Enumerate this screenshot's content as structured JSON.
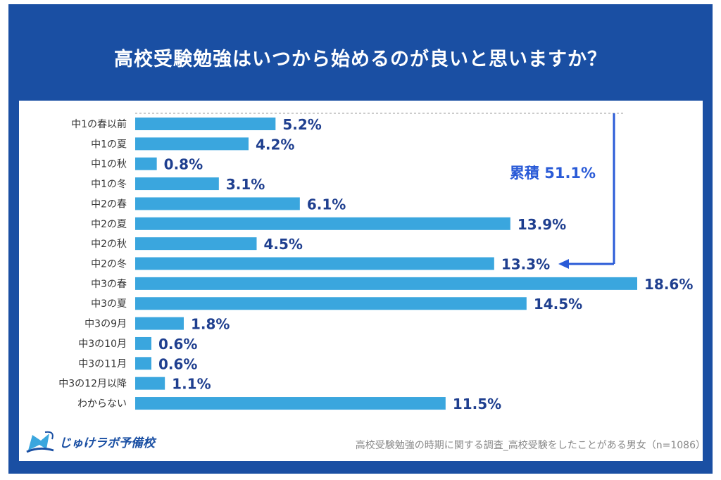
{
  "chart_data": {
    "type": "bar",
    "orientation": "horizontal",
    "title": "高校受験勉強はいつから始めるのが良いと思いますか？",
    "categories": [
      "中1の春以前",
      "中1の夏",
      "中1の秋",
      "中1の冬",
      "中2の春",
      "中2の夏",
      "中2の秋",
      "中2の冬",
      "中3の春",
      "中3の夏",
      "中3の9月",
      "中3の10月",
      "中3の11月",
      "中3の12月以降",
      "わからない"
    ],
    "values": [
      5.2,
      4.2,
      0.8,
      3.1,
      6.1,
      13.9,
      4.5,
      13.3,
      18.6,
      14.5,
      1.8,
      0.6,
      0.6,
      1.1,
      11.5
    ],
    "value_labels": [
      "5.2%",
      "4.2%",
      "0.8%",
      "3.1%",
      "6.1%",
      "13.9%",
      "4.5%",
      "13.3%",
      "18.6%",
      "14.5%",
      "1.8%",
      "0.6%",
      "0.6%",
      "1.1%",
      "11.5%"
    ],
    "annotation": "累積 51.1%",
    "source": "高校受験勉強の時期に関する調査_高校受験をしたことがある男女（n=1086）",
    "grid": false,
    "colors": {
      "bar": "#3aa6de",
      "label": "#1f3f8f",
      "annotation": "#2a5bd7",
      "frame": "#1a4fa3"
    }
  },
  "logo": {
    "text": "じゅけラボ予備校"
  }
}
